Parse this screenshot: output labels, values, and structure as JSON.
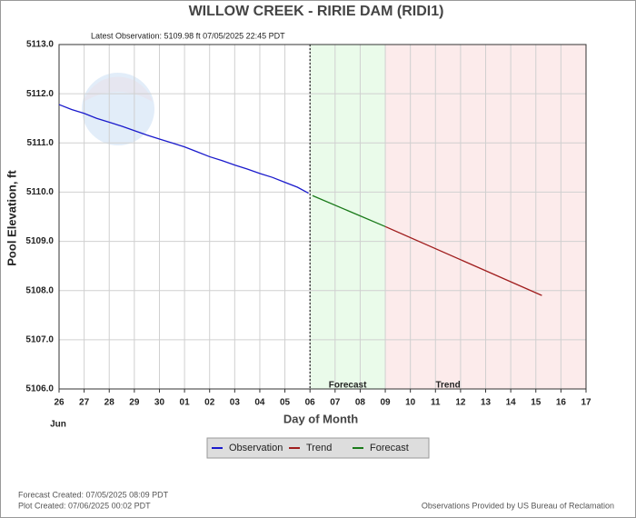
{
  "chart_data": {
    "type": "line",
    "title": "WILLOW CREEK - RIRIE DAM  (RIDI1)",
    "subtitle": "Latest Observation: 5109.98 ft 07/05/2025 22:45 PDT",
    "x_label": "Day of Month",
    "x_sublabel": "Jun",
    "y_label": "Pool Elevation, ft",
    "xlim": [
      0,
      21
    ],
    "xticks": [
      {
        "value": 0,
        "label": "26"
      },
      {
        "value": 1,
        "label": "27"
      },
      {
        "value": 2,
        "label": "28"
      },
      {
        "value": 3,
        "label": "29"
      },
      {
        "value": 4,
        "label": "30"
      },
      {
        "value": 5,
        "label": "01"
      },
      {
        "value": 6,
        "label": "02"
      },
      {
        "value": 7,
        "label": "03"
      },
      {
        "value": 8,
        "label": "04"
      },
      {
        "value": 9,
        "label": "05"
      },
      {
        "value": 10,
        "label": "06"
      },
      {
        "value": 11,
        "label": "07"
      },
      {
        "value": 12,
        "label": "08"
      },
      {
        "value": 13,
        "label": "09"
      },
      {
        "value": 14,
        "label": "10"
      },
      {
        "value": 15,
        "label": "11"
      },
      {
        "value": 16,
        "label": "12"
      },
      {
        "value": 17,
        "label": "13"
      },
      {
        "value": 18,
        "label": "14"
      },
      {
        "value": 19,
        "label": "15"
      },
      {
        "value": 20,
        "label": "16"
      },
      {
        "value": 21,
        "label": "17"
      }
    ],
    "ylim": [
      5106,
      5113
    ],
    "yticks": [
      {
        "value": 5106,
        "label": "5106.0"
      },
      {
        "value": 5107,
        "label": "5107.0"
      },
      {
        "value": 5108,
        "label": "5108.0"
      },
      {
        "value": 5109,
        "label": "5109.0"
      },
      {
        "value": 5110,
        "label": "5110.0"
      },
      {
        "value": 5111,
        "label": "5111.0"
      },
      {
        "value": 5112,
        "label": "5112.0"
      },
      {
        "value": 5113,
        "label": "5113.0"
      }
    ],
    "grid": true,
    "regions": [
      {
        "label": "Forecast",
        "xlim": [
          10,
          13
        ],
        "color": "#eafbea"
      },
      {
        "label": "Trend",
        "xlim": [
          13,
          21
        ],
        "color": "#fcebeb"
      }
    ],
    "series": [
      {
        "name": "Observation",
        "color": "#1a1acc",
        "x": [
          0,
          0.5,
          1,
          1.5,
          2,
          2.5,
          3,
          3.5,
          4,
          4.5,
          5,
          5.5,
          6,
          6.5,
          7,
          7.5,
          8,
          8.5,
          9,
          9.5,
          9.94
        ],
        "values": [
          5111.78,
          5111.68,
          5111.6,
          5111.5,
          5111.42,
          5111.34,
          5111.25,
          5111.16,
          5111.08,
          5111.0,
          5110.92,
          5110.82,
          5110.72,
          5110.64,
          5110.55,
          5110.47,
          5110.38,
          5110.3,
          5110.2,
          5110.1,
          5109.98
        ]
      },
      {
        "name": "Trend",
        "color": "#a01e1e",
        "x": [
          13,
          19.24
        ],
        "values": [
          5109.3,
          5107.9
        ]
      },
      {
        "name": "Forecast",
        "color": "#1a7a1a",
        "x": [
          10.1,
          13
        ],
        "values": [
          5109.93,
          5109.3
        ]
      }
    ],
    "footer_left": [
      "Forecast Created: 07/05/2025 08:09 PDT",
      "Plot Created: 07/06/2025 00:02 PDT"
    ],
    "footer_right": "Observations Provided by US Bureau of Reclamation"
  }
}
